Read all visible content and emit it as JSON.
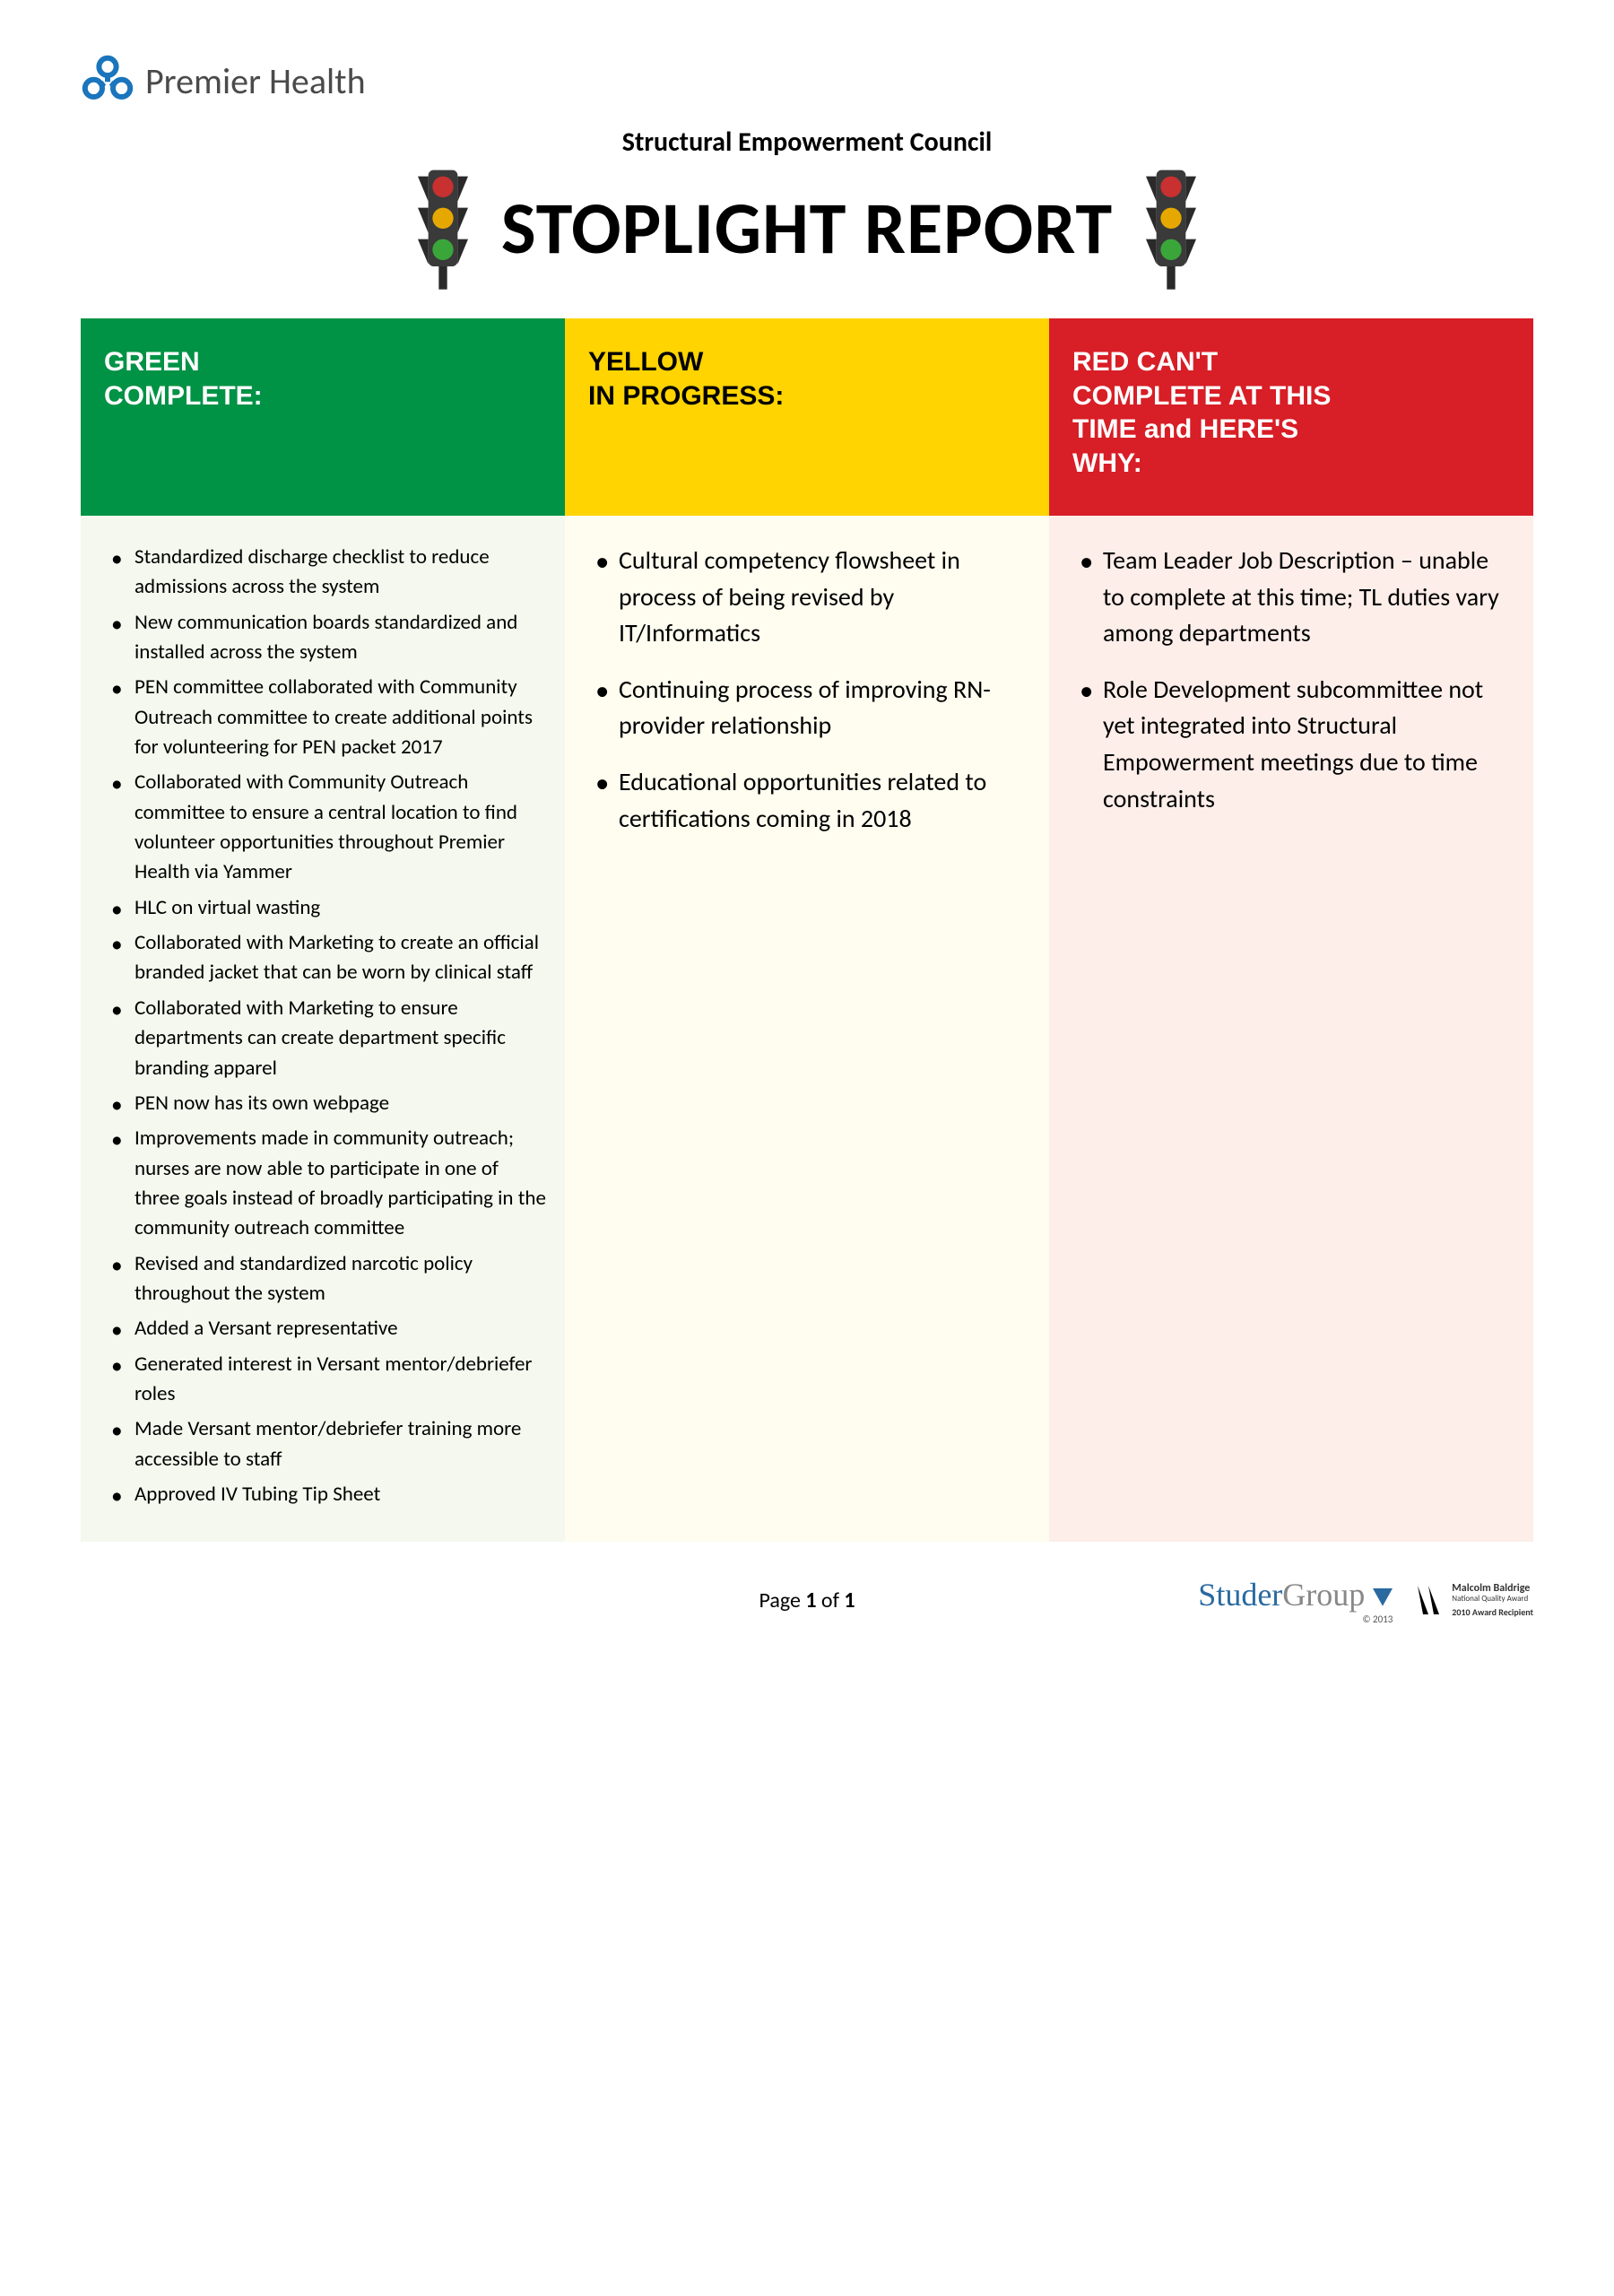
{
  "header": {
    "org_name": "Premier Health",
    "council": "Structural Empowerment Council",
    "title": "STOPLIGHT REPORT",
    "logo_color": "#1a75bc"
  },
  "columns": {
    "green": {
      "header_bg": "#009245",
      "body_bg": "#f5f8ee",
      "title_line1": "GREEN",
      "title_line2": "COMPLETE:",
      "items": [
        "Standardized discharge checklist to reduce admissions across the system",
        "New communication boards standardized and installed across the system",
        "PEN committee collaborated with Community Outreach committee to create additional points for volunteering for PEN packet 2017",
        "Collaborated with Community Outreach committee to ensure a central location to find volunteer opportunities throughout Premier Health via Yammer",
        "HLC on virtual wasting",
        "Collaborated with Marketing to create an official branded jacket that can be worn by clinical staff",
        "Collaborated with Marketing to ensure departments can create department specific branding apparel",
        "PEN now has its own webpage",
        "Improvements made in community outreach; nurses are now able to participate in one of three goals instead of broadly participating in the community outreach committee",
        "Revised and standardized narcotic policy throughout the system",
        "Added a Versant representative",
        "Generated interest in Versant mentor/debriefer roles",
        "Made Versant mentor/debriefer training more accessible to staff",
        "Approved IV Tubing Tip Sheet"
      ]
    },
    "yellow": {
      "header_bg": "#ffd400",
      "body_bg": "#fefdf0",
      "title_line1": "YELLOW",
      "title_line2": "IN PROGRESS:",
      "items": [
        "Cultural competency flowsheet in process of being revised by IT/Informatics",
        "Continuing process of improving RN-provider relationship",
        "Educational opportunities related to certifications coming in 2018"
      ]
    },
    "red": {
      "header_bg": "#d81e26",
      "body_bg": "#fdeee9",
      "title_line1": "RED CAN'T",
      "title_line2": "COMPLETE AT THIS",
      "title_line3": "TIME and HERE'S",
      "title_line4": "WHY:",
      "items": [
        "Team Leader Job Description – unable to complete at this time; TL duties vary among departments",
        "Role Development subcommittee not yet integrated into Structural Empowerment meetings due to time constraints"
      ]
    }
  },
  "footer": {
    "page_label_prefix": "Page ",
    "page_current": "1",
    "page_label_mid": " of ",
    "page_total": "1",
    "studer_part1": "Studer",
    "studer_part2": "Group",
    "studer_copy": "© 2013",
    "baldrige_line1": "Malcolm Baldrige",
    "baldrige_line2": "National Quality Award",
    "baldrige_line3": "2010 Award Recipient"
  },
  "traffic_light": {
    "body": "#3a3a3a",
    "red": "#c93030",
    "yellow": "#e6a800",
    "green": "#3aa63a"
  }
}
